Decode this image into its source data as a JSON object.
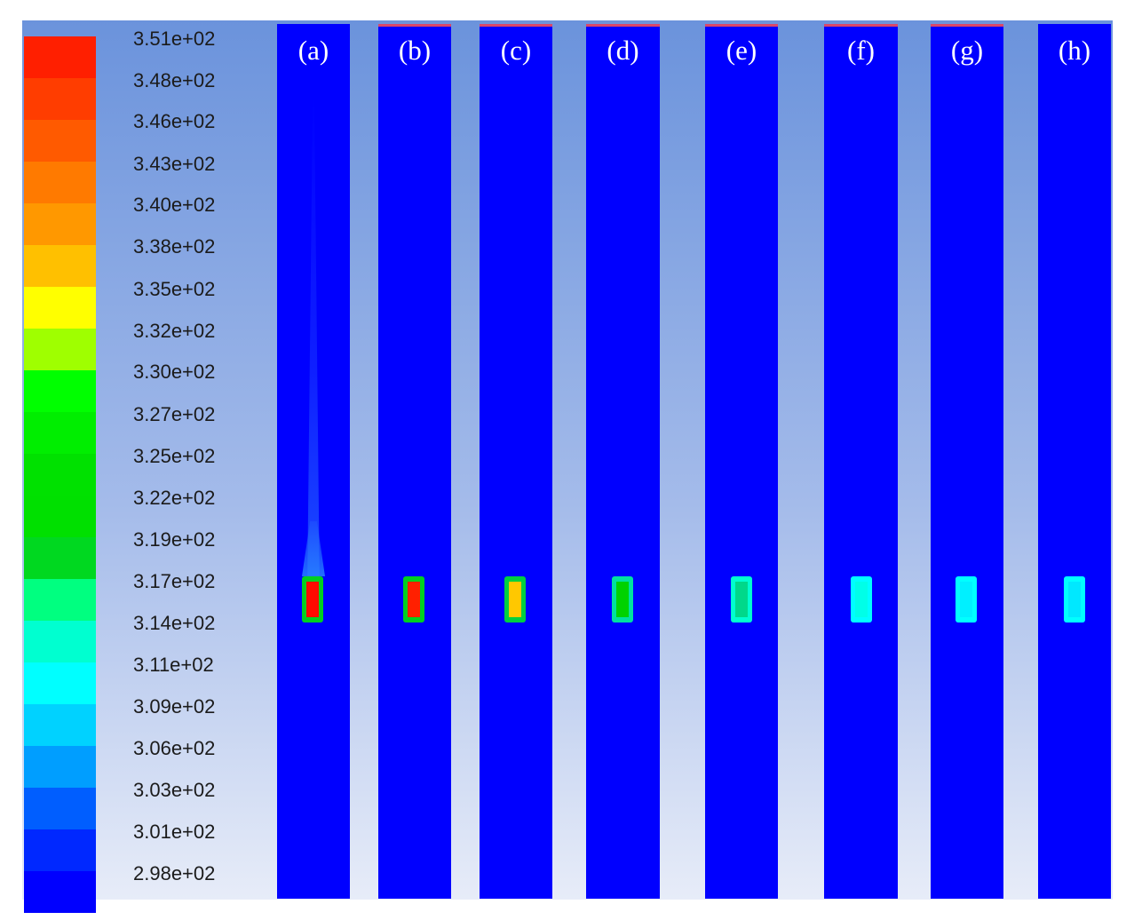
{
  "chart_data": {
    "type": "heatmap",
    "colorbar": {
      "ticks": [
        "3.51e+02",
        "3.48e+02",
        "3.46e+02",
        "3.43e+02",
        "3.40e+02",
        "3.38e+02",
        "3.35e+02",
        "3.32e+02",
        "3.30e+02",
        "3.27e+02",
        "3.25e+02",
        "3.22e+02",
        "3.19e+02",
        "3.17e+02",
        "3.14e+02",
        "3.11e+02",
        "3.09e+02",
        "3.06e+02",
        "3.03e+02",
        "3.01e+02",
        "2.98e+02"
      ],
      "min": 298,
      "max": 351,
      "colors_top_to_bottom": [
        "#ff1f00",
        "#ff3d00",
        "#ff5a00",
        "#ff7a00",
        "#ff9800",
        "#ffc000",
        "#ffff00",
        "#9fff00",
        "#00ff00",
        "#00ee00",
        "#00e100",
        "#00e000",
        "#00d820",
        "#00ff80",
        "#00ffd0",
        "#00ffff",
        "#00d2ff",
        "#009eff",
        "#005eff",
        "#0028ff",
        "#0000ff"
      ]
    },
    "panels": [
      {
        "label": "(a)",
        "hotspot_value": 351,
        "core_color": "#ff0a00",
        "rim_color": "#00d020"
      },
      {
        "label": "(b)",
        "hotspot_value": 348,
        "core_color": "#ff2000",
        "rim_color": "#00d020"
      },
      {
        "label": "(c)",
        "hotspot_value": 336,
        "core_color": "#ffc800",
        "rim_color": "#00d040"
      },
      {
        "label": "(d)",
        "hotspot_value": 327,
        "core_color": "#00d200",
        "rim_color": "#00e0a0"
      },
      {
        "label": "(e)",
        "hotspot_value": 320,
        "core_color": "#00d88a",
        "rim_color": "#00ffd0"
      },
      {
        "label": "(f)",
        "hotspot_value": 315,
        "core_color": "#00ffe8",
        "rim_color": "#00ffff"
      },
      {
        "label": "(g)",
        "hotspot_value": 313,
        "core_color": "#00f0ff",
        "rim_color": "#00ffff"
      },
      {
        "label": "(h)",
        "hotspot_value": 312,
        "core_color": "#00e8ff",
        "rim_color": "#00ffff"
      }
    ]
  }
}
